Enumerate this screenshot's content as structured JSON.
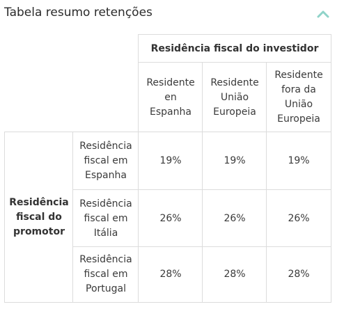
{
  "widget": {
    "title": "Tabela resumo retenções",
    "collapse_icon": "chevron-up-icon",
    "accent_color": "#8fd3c9"
  },
  "table": {
    "investor_group_header": "Residência fiscal do investidor",
    "investor_columns": [
      "Residente\nen\nEspanha",
      "Residente\nUnião\nEuropeia",
      "Residente\nfora da\nUnião\nEuropeia"
    ],
    "promoter_group_header": "Residência\nfiscal do\npromotor",
    "rows": [
      {
        "label": "Residência\nfiscal em\nEspanha",
        "values": [
          "19%",
          "19%",
          "19%"
        ]
      },
      {
        "label": "Residência\nfiscal em\nItália",
        "values": [
          "26%",
          "26%",
          "26%"
        ]
      },
      {
        "label": "Residência\nfiscal em\nPortugal",
        "values": [
          "28%",
          "28%",
          "28%"
        ]
      }
    ]
  }
}
